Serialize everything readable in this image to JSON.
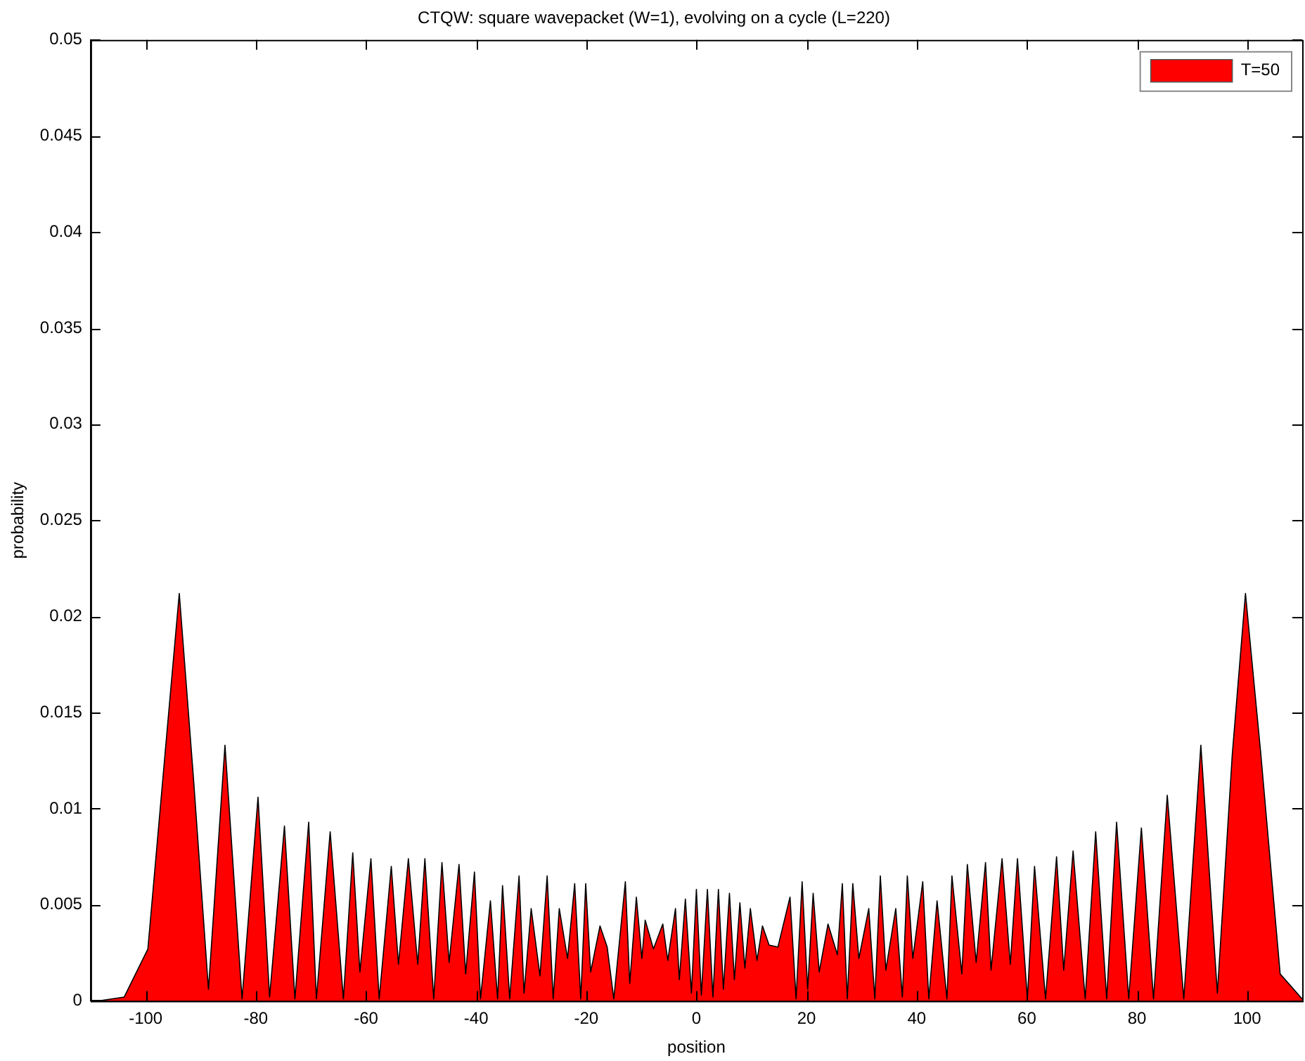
{
  "chart_data": {
    "type": "area",
    "title": "CTQW: square wavepacket (W=1), evolving on a cycle (L=220)",
    "xlabel": "position",
    "ylabel": "probability",
    "xlim": [
      -110,
      110
    ],
    "xticks": [
      -100,
      -80,
      -60,
      -40,
      -20,
      0,
      20,
      40,
      60,
      80,
      100
    ],
    "ylim": [
      0,
      0.05
    ],
    "yticks": [
      0,
      0.005,
      0.01,
      0.015,
      0.02,
      0.025,
      0.03,
      0.035,
      0.04,
      0.045,
      0.05
    ],
    "grid": false,
    "legend": "top right",
    "series": [
      {
        "name": "T=50",
        "color": "#ff0000",
        "x": [
          -108.4,
          -103.9,
          -99.6,
          -96.5,
          -93.9,
          -91.3,
          -88.6,
          -85.6,
          -82.5,
          -79.6,
          -77.5,
          -74.8,
          -72.9,
          -70.4,
          -69.0,
          -66.5,
          -64.1,
          -62.4,
          -61.1,
          -59.1,
          -57.6,
          -55.4,
          -54.1,
          -52.3,
          -50.6,
          -49.3,
          -47.7,
          -46.2,
          -44.9,
          -43.1,
          -41.9,
          -40.3,
          -39.2,
          -37.4,
          -36.1,
          -35.2,
          -33.9,
          -32.2,
          -31.3,
          -30.0,
          -28.4,
          -27.1,
          -26.0,
          -24.9,
          -23.4,
          -22.1,
          -21.0,
          -20.1,
          -19.2,
          -17.5,
          -16.2,
          -15.0,
          -12.9,
          -12.1,
          -10.9,
          -9.9,
          -9.3,
          -7.8,
          -6.1,
          -5.2,
          -3.8,
          -3.1,
          -2.0,
          -0.9,
          0,
          0.9,
          2.0,
          3.0,
          4.0,
          4.9,
          6.0,
          6.9,
          7.9,
          8.8,
          9.8,
          11.0,
          12.0,
          13.2,
          14.8,
          17.0,
          18.1,
          19.2,
          20.2,
          21.2,
          22.3,
          23.9,
          25.6,
          26.5,
          27.4,
          28.4,
          29.5,
          31.3,
          32.4,
          33.4,
          34.4,
          36.2,
          37.4,
          38.3,
          39.3,
          41.1,
          42.2,
          43.7,
          45.5,
          46.4,
          48.2,
          49.2,
          50.8,
          52.5,
          53.5,
          55.5,
          57.0,
          58.3,
          60.1,
          61.4,
          63.4,
          65.4,
          66.7,
          68.4,
          70.6,
          72.5,
          74.5,
          76.3,
          78.5,
          80.8,
          83.0,
          85.5,
          88.5,
          91.6,
          94.6,
          97.3,
          99.7,
          102.5,
          106.0,
          110
        ],
        "values": [
          0,
          0.0002,
          0.0027,
          0.0128,
          0.0212,
          0.0115,
          0.0006,
          0.0133,
          0.0001,
          0.0106,
          0.0002,
          0.0091,
          0.0001,
          0.0093,
          0.0001,
          0.0088,
          0.0001,
          0.0077,
          0.0015,
          0.0074,
          0.0001,
          0.007,
          0.0019,
          0.0074,
          0.0019,
          0.0074,
          0.0001,
          0.0072,
          0.002,
          0.0071,
          0.0014,
          0.0067,
          0.0001,
          0.0052,
          0.0001,
          0.006,
          0.0001,
          0.0065,
          0.0004,
          0.0048,
          0.0013,
          0.0065,
          0.0001,
          0.0048,
          0.0022,
          0.0061,
          0.0001,
          0.0061,
          0.0015,
          0.0039,
          0.0028,
          0.0001,
          0.0062,
          0.0009,
          0.0054,
          0.0022,
          0.0042,
          0.0027,
          0.004,
          0.0021,
          0.0048,
          0.0011,
          0.0053,
          0.0004,
          0.0058,
          0.0003,
          0.0058,
          0.0002,
          0.0058,
          0.0006,
          0.0056,
          0.0011,
          0.0051,
          0.0017,
          0.0048,
          0.0021,
          0.0039,
          0.0029,
          0.0028,
          0.0054,
          0.0001,
          0.0062,
          0.0006,
          0.0056,
          0.0015,
          0.004,
          0.0024,
          0.0061,
          0.0001,
          0.0061,
          0.0022,
          0.0048,
          0.0001,
          0.0065,
          0.0016,
          0.0048,
          0.0002,
          0.0065,
          0.0022,
          0.0062,
          0.0001,
          0.0052,
          0.0001,
          0.0065,
          0.0014,
          0.0071,
          0.002,
          0.0072,
          0.0016,
          0.0074,
          0.0019,
          0.0074,
          0.0001,
          0.007,
          0.0001,
          0.0075,
          0.0016,
          0.0078,
          0.0001,
          0.0088,
          0.0001,
          0.0093,
          0.0001,
          0.009,
          0.0001,
          0.0107,
          0.0001,
          0.0133,
          0.0004,
          0.0128,
          0.0212,
          0.0128,
          0.0014,
          0.0001
        ]
      }
    ]
  }
}
